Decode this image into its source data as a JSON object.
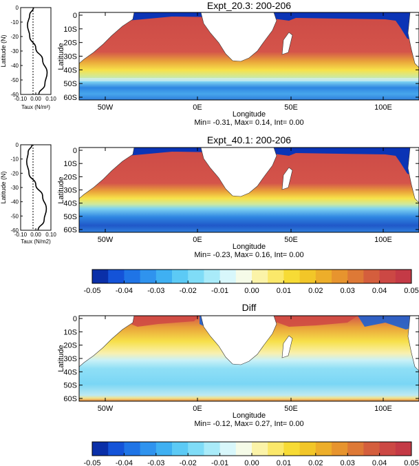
{
  "chart_data": [
    {
      "type": "line",
      "panel": "wind-profile-1",
      "xlabel": "Taux (N/m²)",
      "ylabel": "Latitude (N)",
      "xticks": [
        "-0.10",
        "0.00",
        "0.10"
      ],
      "yticks": [
        "0",
        "-10",
        "-20",
        "-30",
        "-40",
        "-50",
        "-60"
      ],
      "xlim": [
        -0.1,
        0.1
      ],
      "ylim": [
        -60,
        0
      ],
      "series": [
        {
          "x": [
            -0.015,
            -0.04,
            -0.055,
            -0.04,
            0.0,
            0.045,
            0.075,
            0.06,
            0.02
          ],
          "y": [
            0,
            -5,
            -12,
            -20,
            -28,
            -36,
            -45,
            -53,
            -60
          ]
        }
      ]
    },
    {
      "type": "heatmap",
      "panel": "map-1",
      "title": "Expt_20.3: 200-206",
      "xlabel": "Longitude",
      "ylabel": "Latitude",
      "xticks": [
        "50W",
        "0E",
        "50E",
        "100E"
      ],
      "yticks": [
        "0",
        "10S",
        "20S",
        "30S",
        "40S",
        "50S",
        "60S"
      ],
      "stats": "Min= -0.31, Max= 0.14, Int= 0.00"
    },
    {
      "type": "line",
      "panel": "wind-profile-2",
      "xlabel": "Taux (N/m2)",
      "ylabel": "Latitude (N)",
      "xticks": [
        "-0.10",
        "0.00",
        "0.10"
      ],
      "yticks": [
        "0",
        "-10",
        "-20",
        "-30",
        "-40",
        "-50",
        "-60"
      ],
      "xlim": [
        -0.1,
        0.1
      ],
      "ylim": [
        -60,
        0
      ],
      "series": [
        {
          "x": [
            -0.025,
            -0.05,
            -0.06,
            -0.045,
            0.0,
            0.045,
            0.07,
            0.055,
            0.015
          ],
          "y": [
            0,
            -5,
            -12,
            -20,
            -28,
            -36,
            -45,
            -53,
            -60
          ]
        }
      ]
    },
    {
      "type": "heatmap",
      "panel": "map-2",
      "title": "Expt_40.1: 200-206",
      "xlabel": "Longitude",
      "ylabel": "Latitude",
      "xticks": [
        "50W",
        "0E",
        "50E",
        "100E"
      ],
      "yticks": [
        "0",
        "10S",
        "20S",
        "30S",
        "40S",
        "50S",
        "60S"
      ],
      "stats": "Min= -0.23, Max= 0.16, Int= 0.00"
    },
    {
      "type": "heatmap",
      "panel": "map-3",
      "title": "Diff",
      "xlabel": "Longitude",
      "ylabel": "Latitude",
      "xticks": [
        "50W",
        "0E",
        "50E",
        "100E"
      ],
      "yticks": [
        "0",
        "10S",
        "20S",
        "30S",
        "40S",
        "50S",
        "60S"
      ],
      "stats": "Min= -0.12, Max= 0.27, Int= 0.00"
    }
  ],
  "colorbar": {
    "labels": [
      "-0.05",
      "-0.04",
      "-0.03",
      "-0.02",
      "-0.01",
      "0.00",
      "0.01",
      "0.02",
      "0.03",
      "0.04",
      "0.05"
    ],
    "colors": [
      "#0a2fa8",
      "#1453d8",
      "#1f74e6",
      "#2f93ee",
      "#3fb0f2",
      "#5ccaf5",
      "#7fdcf7",
      "#a9ebf9",
      "#d8f7fb",
      "#f5fbe8",
      "#fbf3a8",
      "#fbe86a",
      "#f7db35",
      "#f2c628",
      "#edae2a",
      "#e7942e",
      "#de7936",
      "#d45e3d",
      "#cc4844",
      "#c43a46"
    ]
  },
  "colors": {
    "land": "#ffffff",
    "strong_positive": "#cf3f47",
    "negative": "#0b34b5"
  }
}
